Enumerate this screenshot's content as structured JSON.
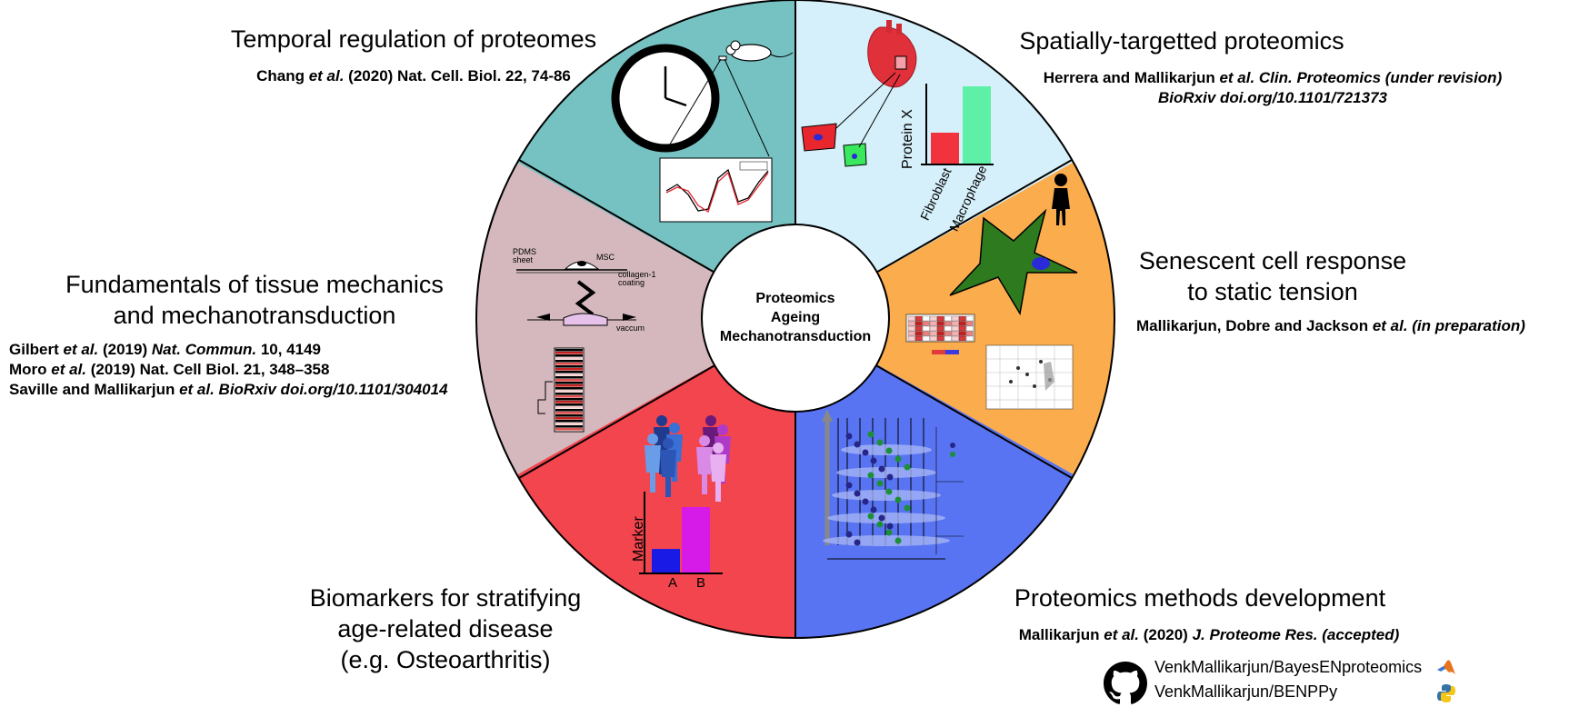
{
  "center": {
    "lines": [
      "Proteomics",
      "Ageing",
      "Mechanotransduction"
    ]
  },
  "colors": {
    "temporal": "#76c2c3",
    "spatial": "#d5f0fa",
    "senescent": "#fbac4c",
    "methods": "#5974f2",
    "biomarkers": "#f2454d",
    "mechanics": "#d4b8bd"
  },
  "segments": {
    "temporal": {
      "heading": [
        "Temporal regulation of proteomes"
      ],
      "refs": [
        [
          {
            "t": "Chang "
          },
          {
            "t": "et al.",
            "i": true
          },
          {
            "t": " (2020) Nat. Cell. Biol. 22, 74-86"
          }
        ]
      ]
    },
    "spatial": {
      "heading": [
        "Spatially-targetted proteomics"
      ],
      "refs": [
        [
          {
            "t": "Herrera and Mallikarjun "
          },
          {
            "t": "et al. Clin. Proteomics (under revision)",
            "i": true
          }
        ],
        [
          {
            "t": "BioRxiv doi.org/10.1101/721373",
            "i": true
          }
        ]
      ],
      "chart_labels": {
        "ylabel": "Protein X",
        "cats": [
          "Fibroblast",
          "Macrophage"
        ]
      }
    },
    "senescent": {
      "heading": [
        "Senescent cell response",
        "to static tension"
      ],
      "refs": [
        [
          {
            "t": "Mallikarjun, Dobre and Jackson "
          },
          {
            "t": "et al. (in preparation)",
            "i": true
          }
        ]
      ]
    },
    "methods": {
      "heading": [
        "Proteomics methods development"
      ],
      "refs": [
        [
          {
            "t": "Mallikarjun "
          },
          {
            "t": "et al.",
            "i": true
          },
          {
            "t": " (2020) "
          },
          {
            "t": "J. Proteome Res. (accepted)",
            "i": true
          }
        ]
      ]
    },
    "biomarkers": {
      "heading": [
        "Biomarkers for stratifying",
        "age-related disease",
        "(e.g. Osteoarthritis)"
      ],
      "chart_labels": {
        "ylabel": "Marker",
        "cats": [
          "A",
          "B"
        ]
      }
    },
    "mechanics": {
      "heading": [
        "Fundamentals of tissue mechanics",
        "and mechanotransduction"
      ],
      "refs": [
        [
          {
            "t": "Gilbert "
          },
          {
            "t": "et al.",
            "i": true
          },
          {
            "t": " (2019) "
          },
          {
            "t": "Nat. Commun.",
            "i": true
          },
          {
            "t": " 10, 4149"
          }
        ],
        [
          {
            "t": "Moro "
          },
          {
            "t": "et al.",
            "i": true
          },
          {
            "t": " (2019) Nat. Cell Biol. 21, 348–358"
          }
        ],
        [
          {
            "t": "Saville and Mallikarjun "
          },
          {
            "t": "et al. BioRxiv doi.org/10.1101/304014",
            "i": true
          }
        ]
      ],
      "labels": [
        "PDMS",
        "sheet",
        "MSC",
        "collagen-1",
        "coating",
        "vaccum"
      ]
    }
  },
  "repos": [
    {
      "name": "VenkMallikarjun/BayesENproteomics",
      "icon": "matlab-icon"
    },
    {
      "name": "VenkMallikarjun/BENPPy",
      "icon": "python-icon"
    }
  ],
  "chart_data": [
    {
      "type": "bar",
      "categories": [
        "Fibroblast",
        "Macrophage"
      ],
      "values": [
        0.4,
        1.0
      ],
      "ylabel": "Protein X",
      "colors": [
        "#f2333d",
        "#5ef0a6"
      ]
    },
    {
      "type": "bar",
      "categories": [
        "A",
        "B"
      ],
      "values": [
        0.36,
        1.0
      ],
      "ylabel": "Marker",
      "colors": [
        "#1a1ae6",
        "#d61ae8"
      ]
    }
  ]
}
